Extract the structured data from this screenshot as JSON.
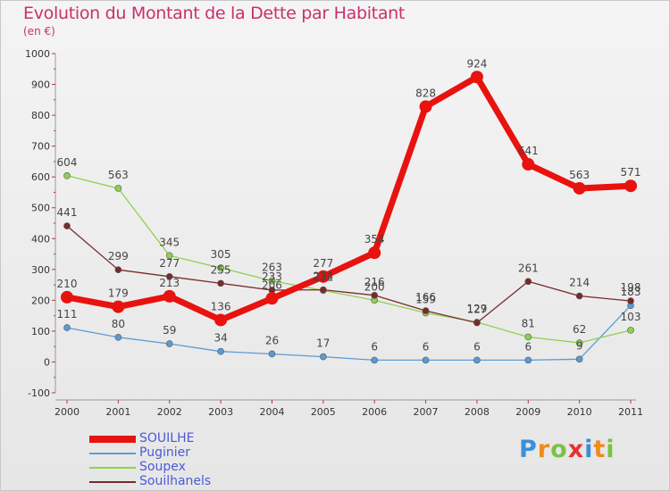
{
  "title": "Evolution du Montant de la Dette par Habitant",
  "subtitle": "(en €)",
  "brand": {
    "letters": [
      "P",
      "r",
      "o",
      "x",
      "i",
      "t",
      "i"
    ],
    "colors": [
      "#3a8fd9",
      "#f08a1c",
      "#7cc242",
      "#e8312f",
      "#3a8fd9",
      "#f08a1c",
      "#7cc242"
    ]
  },
  "chart_data": {
    "type": "line",
    "title": "Evolution du Montant de la Dette par Habitant",
    "subtitle": "(en €)",
    "x": [
      "2000",
      "2001",
      "2002",
      "2003",
      "2004",
      "2005",
      "2006",
      "2007",
      "2008",
      "2009",
      "2010",
      "2011"
    ],
    "ylim": [
      -100,
      1000
    ],
    "yticks": [
      "-100",
      "0",
      "100",
      "200",
      "300",
      "400",
      "500",
      "600",
      "700",
      "800",
      "900",
      "1000"
    ],
    "grid": false,
    "legend_position": "bottom-left",
    "series": [
      {
        "name": "SOUILHE",
        "color": "#e8120e",
        "values": [
          210,
          179,
          213,
          136,
          206,
          277,
          354,
          828,
          924,
          641,
          563,
          571
        ],
        "labels": [
          "210",
          "179",
          "213",
          "136",
          "206",
          "277",
          "354",
          "828",
          "924",
          "641",
          "563",
          "571"
        ]
      },
      {
        "name": "Puginier",
        "color": "#5b9bd5",
        "values": [
          111,
          80,
          59,
          34,
          26,
          17,
          6,
          6,
          6,
          6,
          9,
          183
        ],
        "labels": [
          "111",
          "80",
          "59",
          "34",
          "26",
          "17",
          "6",
          "6",
          "6",
          "6",
          "9",
          "183"
        ]
      },
      {
        "name": "Soupex",
        "color": "#8fd14f",
        "values": [
          604,
          563,
          345,
          305,
          263,
          232,
          200,
          159,
          129,
          81,
          62,
          103
        ],
        "labels": [
          "604",
          "563",
          "345",
          "305",
          "263",
          "232",
          "200",
          "159",
          "129",
          "81",
          "62",
          "103"
        ]
      },
      {
        "name": "Souilhanels",
        "color": "#7a2a2a",
        "values": [
          441,
          299,
          277,
          255,
          233,
          234,
          216,
          166,
          127,
          261,
          214,
          198
        ],
        "labels": [
          "441",
          "299",
          "277",
          "255",
          "233",
          "234",
          "216",
          "166",
          "127",
          "261",
          "214",
          "198"
        ]
      }
    ]
  }
}
